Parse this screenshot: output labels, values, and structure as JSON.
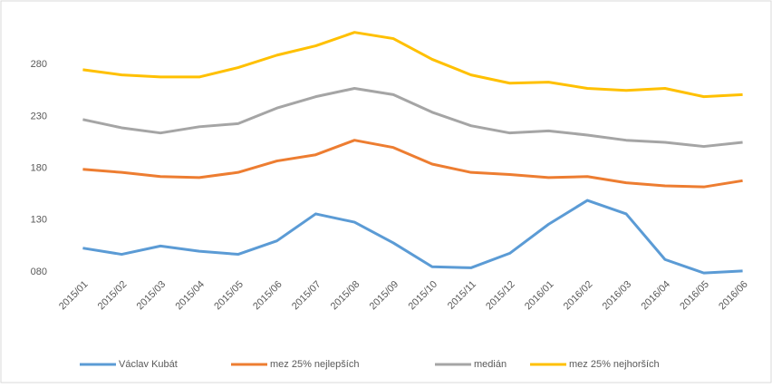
{
  "chart_data": {
    "type": "line",
    "categories": [
      "2015/01",
      "2015/02",
      "2015/03",
      "2015/04",
      "2015/05",
      "2015/06",
      "2015/07",
      "2015/08",
      "2015/09",
      "2015/10",
      "2015/11",
      "2015/12",
      "2016/01",
      "2016/02",
      "2016/03",
      "2016/04",
      "2016/05",
      "2016/06"
    ],
    "series": [
      {
        "name": "Václav Kubát",
        "color": "#5b9bd5",
        "values": [
          103,
          97,
          105,
          100,
          97,
          110,
          136,
          128,
          108,
          85,
          84,
          98,
          126,
          149,
          136,
          92,
          79,
          81
        ]
      },
      {
        "name": "mez 25% nejlepších",
        "color": "#ed7d31",
        "values": [
          179,
          176,
          172,
          171,
          176,
          187,
          193,
          207,
          200,
          184,
          176,
          174,
          171,
          172,
          166,
          163,
          162,
          168
        ]
      },
      {
        "name": "medián",
        "color": "#a5a5a5",
        "values": [
          227,
          219,
          214,
          220,
          223,
          238,
          249,
          257,
          251,
          234,
          221,
          214,
          216,
          212,
          207,
          205,
          201,
          205
        ]
      },
      {
        "name": "mez 25% nejhorších",
        "color": "#ffc000",
        "values": [
          275,
          270,
          268,
          268,
          277,
          289,
          298,
          311,
          305,
          285,
          270,
          262,
          263,
          257,
          255,
          257,
          249,
          251
        ]
      }
    ],
    "ylim": [
      80,
      320
    ],
    "yticks": [
      {
        "value": 80,
        "label": "080"
      },
      130,
      180,
      230,
      280
    ],
    "grid": false,
    "legend": "bottom"
  }
}
